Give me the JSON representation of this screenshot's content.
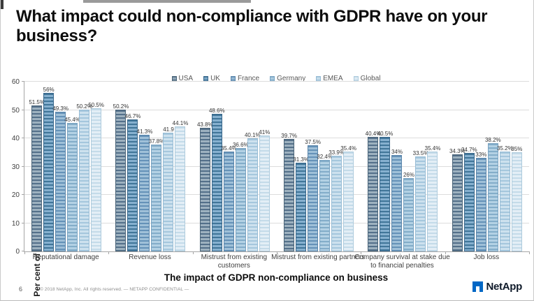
{
  "title": "What impact could non-compliance with GDPR have on your business?",
  "footer": {
    "page_number": "6",
    "copyright_line": "© 2018 NetApp, Inc. All rights reserved.   — NETAPP CONFIDENTIAL —",
    "logo_text": "NetApp",
    "logo_color": "#0067C5"
  },
  "chart_data": {
    "type": "bar",
    "title": "",
    "xlabel": "The impact of GDPR non-compliance on business",
    "ylabel": "Per cent of respondents",
    "ylim": [
      0,
      60
    ],
    "yticks": [
      0,
      10,
      20,
      30,
      40,
      50,
      60
    ],
    "grid": true,
    "legend_position": "top-center",
    "categories": [
      "Reputational damage",
      "Revenue loss",
      "Mistrust from existing customers",
      "Mistrust from existing partners",
      "Company survival at stake due to financial penalties",
      "Job loss"
    ],
    "category_lines": [
      [
        "Reputational damage"
      ],
      [
        "Revenue loss"
      ],
      [
        "Mistrust from existing",
        "customers"
      ],
      [
        "Mistrust from existing partners"
      ],
      [
        "Company survival at stake due",
        "to financial penalties"
      ],
      [
        "Job loss"
      ]
    ],
    "series": [
      {
        "name": "USA",
        "values": [
          51.5,
          50.2,
          43.8,
          39.7,
          40.4,
          34.3
        ],
        "labels": [
          "51.5%",
          "50.2%",
          "43.8%",
          "39.7%",
          "40.4%",
          "34.3%"
        ],
        "color": {
          "light": "#9db1bf",
          "dark": "#54708a",
          "border": "#4a6478"
        }
      },
      {
        "name": "UK",
        "values": [
          56,
          46.7,
          48.6,
          31.3,
          40.5,
          34.7
        ],
        "labels": [
          "56%",
          "46.7%",
          "48.6%",
          "31.3%",
          "40.5%",
          "34.7%"
        ],
        "color": {
          "light": "#86b0cf",
          "dark": "#417699",
          "border": "#3a688c"
        }
      },
      {
        "name": "France",
        "values": [
          49.3,
          41.3,
          35.4,
          37.5,
          34,
          33
        ],
        "labels": [
          "49.3%",
          "41.3%",
          "35.4%",
          "37.5%",
          "34%",
          "33%"
        ],
        "color": {
          "light": "#9fc0d8",
          "dark": "#6592b8",
          "border": "#5b86ab"
        }
      },
      {
        "name": "Germany",
        "values": [
          45.4,
          37.8,
          36.6,
          32.4,
          26,
          38.2
        ],
        "labels": [
          "45.4%",
          "37.8%",
          "36.6%",
          "32.4%",
          "26%",
          "38.2%"
        ],
        "color": {
          "light": "#b3d1e4",
          "dark": "#83adc9",
          "border": "#79a3c2"
        }
      },
      {
        "name": "EMEA",
        "values": [
          50.2,
          41.9,
          40.1,
          33.9,
          33.5,
          35.2
        ],
        "labels": [
          "50.2%",
          "41.9",
          "40.1%",
          "33.9%",
          "33.5%",
          "35.2%"
        ],
        "color": {
          "light": "#cde1ee",
          "dark": "#a5c7dd",
          "border": "#97bcd5"
        }
      },
      {
        "name": "Global",
        "values": [
          50.5,
          44.1,
          41,
          35.4,
          35.4,
          35
        ],
        "labels": [
          "50.5%",
          "44.1%",
          "41%",
          "35.4%",
          "35.4%",
          "35%"
        ],
        "color": {
          "light": "#e3eef6",
          "dark": "#c4dbe9",
          "border": "#aecbdd"
        }
      }
    ]
  }
}
